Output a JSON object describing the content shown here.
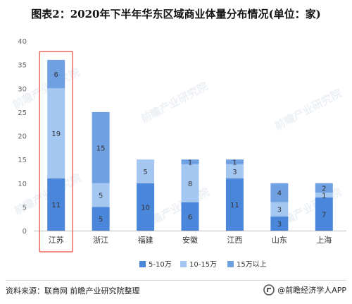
{
  "title": "图表2：2020年下半年华东区域商业体量分布情况(单位：家)",
  "footer": {
    "source": "资料来源：联商网 前瞻产业研究院整理",
    "brand": "@前瞻经济学人APP"
  },
  "watermark": "前瞻产业研究院",
  "colors": {
    "series_5_10": "#4a86d9",
    "series_10_15": "#a4c7f2",
    "series_15plus": "#6fa0e2",
    "highlight_box": "#e8473f",
    "axis": "#bdbdbd",
    "tick_text": "#666666",
    "bar_label": "#333333"
  },
  "chart_data": {
    "type": "bar",
    "stacked": true,
    "categories": [
      "江苏",
      "浙江",
      "福建",
      "安徽",
      "江西",
      "山东",
      "上海"
    ],
    "series": [
      {
        "name": "5-10万",
        "values": [
          11,
          5,
          10,
          6,
          11,
          3,
          7
        ]
      },
      {
        "name": "10-15万",
        "values": [
          19,
          5,
          5,
          8,
          3,
          3,
          1
        ]
      },
      {
        "name": "15万以上",
        "values": [
          6,
          15,
          0,
          1,
          1,
          4,
          2
        ]
      }
    ],
    "ylim": [
      0,
      40
    ],
    "yticks": [
      0,
      5,
      10,
      15,
      20,
      25,
      30,
      35,
      40
    ],
    "grid": false,
    "legend_position": "bottom",
    "highlight_category": "江苏"
  }
}
